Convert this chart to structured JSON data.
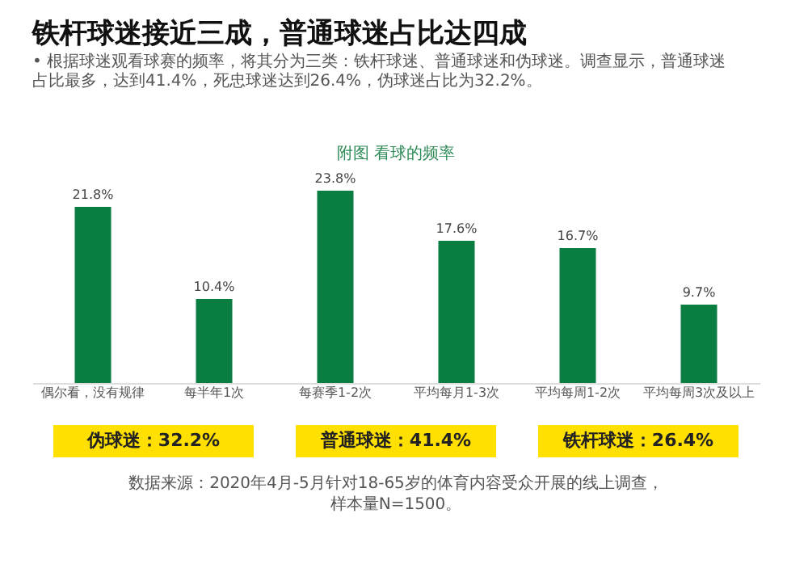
{
  "chart_data": {
    "type": "bar",
    "title": "铁杆球迷接近三成，普通球迷占比达四成",
    "subtitle": "• 根据球迷观看球赛的频率，将其分为三类：铁杆球迷、普通球迷和伪球迷。调查显示，普通球迷占比最多，达到41.4%，死忠球迷达到26.4%，伪球迷占比为32.2%。",
    "categories": [
      "偶尔看，没有规律",
      "每半年1次",
      "每赛季1-2次",
      "平均每月1-3次",
      "平均每周1-2次",
      "平均每周3次及以上"
    ],
    "values": [
      21.8,
      10.4,
      23.8,
      17.6,
      16.7,
      9.7
    ],
    "color": "#0a7d40",
    "value_labels": [
      "21.8%",
      "10.4%",
      "23.8%",
      "17.6%",
      "16.7%",
      "9.7%"
    ],
    "annotations": [
      "附图  看球的频率",
      "伪球迷：32.2%",
      "普通球迷：41.4%",
      "铁杆球迷：26.4%",
      "数据来源：2020年4月-5月针对18-65岁的体育内容受众开展的线上调查，样本量N=1500。"
    ],
    "grid": false
  }
}
